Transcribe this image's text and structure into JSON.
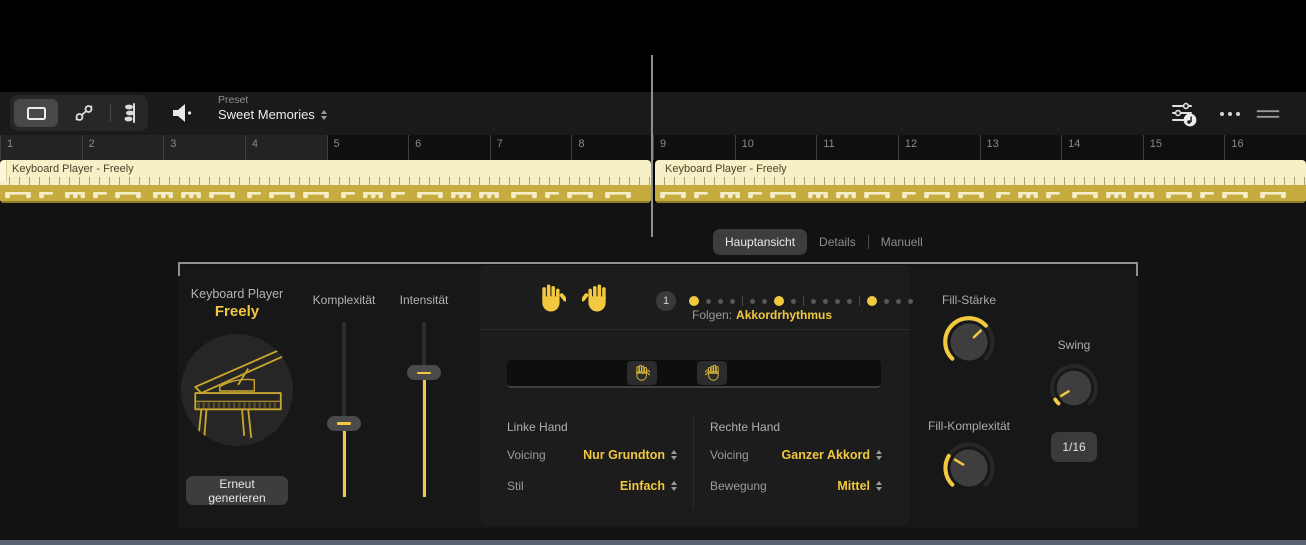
{
  "colors": {
    "accent": "#f2c83f",
    "region_fill": "#f7efc6",
    "region_band": "#c6ab3e",
    "region_text": "#4c442a",
    "bottom_bar": "#5a6470"
  },
  "toolbar": {
    "view_icons": [
      "region-view-icon",
      "automation-view-icon",
      "midi-notes-icon"
    ],
    "speaker_icon": "speaker-icon",
    "preset_label": "Preset",
    "preset_value": "Sweet Memories",
    "right_icons": [
      "session-player-settings-icon",
      "more-icon",
      "window-handle-icon"
    ]
  },
  "ruler": {
    "bars": [
      "1",
      "2",
      "3",
      "4",
      "5",
      "6",
      "7",
      "8",
      "9",
      "10",
      "11",
      "12",
      "13",
      "14",
      "15",
      "16"
    ]
  },
  "regions": [
    {
      "name": "Keyboard Player - Freely"
    },
    {
      "name": "Keyboard Player - Freely"
    }
  ],
  "tabs": {
    "items": [
      "Hauptansicht",
      "Details",
      "Manuell"
    ],
    "active": "Hauptansicht"
  },
  "player": {
    "type_label": "Keyboard Player",
    "style_value": "Freely",
    "regenerate_label": "Erneut generieren"
  },
  "sliders": [
    {
      "label": "Komplexität",
      "value": 0.42
    },
    {
      "label": "Intensität",
      "value": 0.71
    }
  ],
  "pattern": {
    "current_badge": "1",
    "dots": [
      1,
      0,
      0,
      0,
      0,
      0,
      1,
      0,
      0,
      0,
      0,
      0,
      1,
      0,
      0,
      0
    ],
    "follow_label": "Folgen:",
    "follow_value": "Akkordrhythmus"
  },
  "hand_sections": {
    "left": {
      "header": "Linke Hand",
      "rows": [
        {
          "label": "Voicing",
          "value": "Nur Grundton"
        },
        {
          "label": "Stil",
          "value": "Einfach"
        }
      ]
    },
    "right": {
      "header": "Rechte Hand",
      "rows": [
        {
          "label": "Voicing",
          "value": "Ganzer Akkord"
        },
        {
          "label": "Bewegung",
          "value": "Mittel"
        }
      ]
    }
  },
  "knobs": [
    {
      "label": "Fill-Stärke",
      "value": 0.67
    },
    {
      "label": "Swing",
      "value": 0.05
    },
    {
      "label": "Fill-Komplexität",
      "value": 0.28
    }
  ],
  "note_value_button": "1/16"
}
